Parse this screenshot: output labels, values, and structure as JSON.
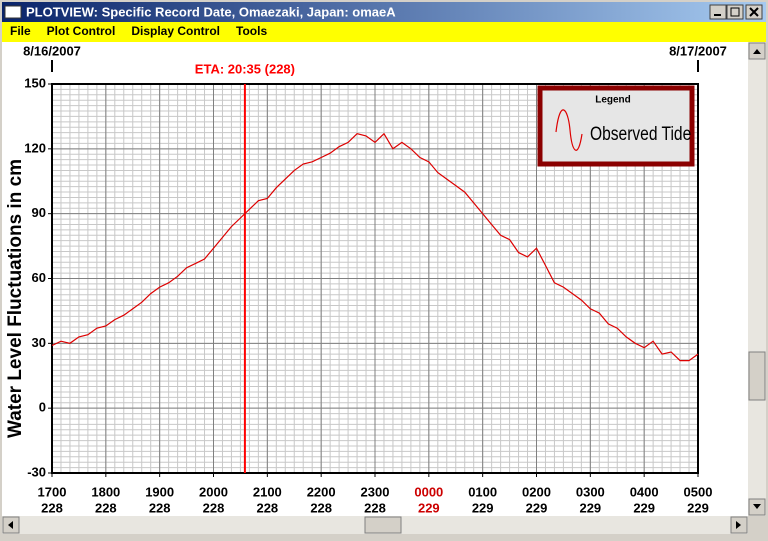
{
  "window": {
    "title": "PLOTVIEW: Specific Record Date, Omaezaki, Japan: omaeA"
  },
  "menu": [
    "File",
    "Plot Control",
    "Display Control",
    "Tools"
  ],
  "chart_data": {
    "type": "line",
    "y_label": "Water Level Fluctuations in cm",
    "date_labels": [
      "8/16/2007",
      "8/17/2007"
    ],
    "eta": {
      "label": "ETA: 20:35 (228)",
      "x": 1235,
      "color": "#ff0000"
    },
    "x": [
      1020,
      1030,
      1040,
      1050,
      1060,
      1070,
      1080,
      1090,
      1100,
      1110,
      1120,
      1130,
      1140,
      1150,
      1160,
      1170,
      1180,
      1190,
      1200,
      1210,
      1220,
      1230,
      1240,
      1250,
      1260,
      1270,
      1280,
      1290,
      1300,
      1310,
      1320,
      1330,
      1340,
      1350,
      1360,
      1370,
      1380,
      1390,
      1400,
      1410,
      1420,
      1430,
      1440,
      1450,
      1460,
      1470,
      1480,
      1490,
      1500,
      1510,
      1520,
      1530,
      1540,
      1550,
      1560,
      1570,
      1580,
      1590,
      1600,
      1610,
      1620,
      1630,
      1640,
      1650,
      1660,
      1670,
      1680,
      1690,
      1700,
      1710,
      1720,
      1730,
      1740
    ],
    "series": [
      {
        "name": "Observed Tide",
        "color": "#dd0000",
        "values": [
          29,
          31,
          30,
          33,
          34,
          37,
          38,
          41,
          43,
          46,
          49,
          53,
          56,
          58,
          61,
          65,
          67,
          69,
          74,
          79,
          84,
          88,
          92,
          96,
          97,
          102,
          106,
          110,
          113,
          114,
          116,
          118,
          121,
          123,
          127,
          126,
          123,
          127,
          120,
          123,
          120,
          116,
          114,
          109,
          106,
          103,
          100,
          95,
          90,
          85,
          80,
          78,
          72,
          70,
          74,
          66,
          58,
          56,
          53,
          50,
          46,
          44,
          39,
          37,
          33,
          30,
          28,
          31,
          25,
          26,
          22,
          22,
          25
        ]
      }
    ],
    "xlim": [
      1020,
      1740
    ],
    "xticks": [
      {
        "value": 1020,
        "label": "1700",
        "day": "228"
      },
      {
        "value": 1080,
        "label": "1800",
        "day": "228"
      },
      {
        "value": 1140,
        "label": "1900",
        "day": "228"
      },
      {
        "value": 1200,
        "label": "2000",
        "day": "228"
      },
      {
        "value": 1260,
        "label": "2100",
        "day": "228"
      },
      {
        "value": 1320,
        "label": "2200",
        "day": "228"
      },
      {
        "value": 1380,
        "label": "2300",
        "day": "228"
      },
      {
        "value": 1440,
        "label": "0000",
        "day": "229",
        "color": "#cc0000"
      },
      {
        "value": 1500,
        "label": "0100",
        "day": "229"
      },
      {
        "value": 1560,
        "label": "0200",
        "day": "229"
      },
      {
        "value": 1620,
        "label": "0300",
        "day": "229"
      },
      {
        "value": 1680,
        "label": "0400",
        "day": "229"
      },
      {
        "value": 1740,
        "label": "0500",
        "day": "229"
      }
    ],
    "ylim": [
      -30,
      150
    ],
    "yticks": [
      -30,
      0,
      30,
      60,
      90,
      120,
      150
    ],
    "grid": true,
    "legend": {
      "title": "Legend",
      "position": "upper right"
    }
  }
}
